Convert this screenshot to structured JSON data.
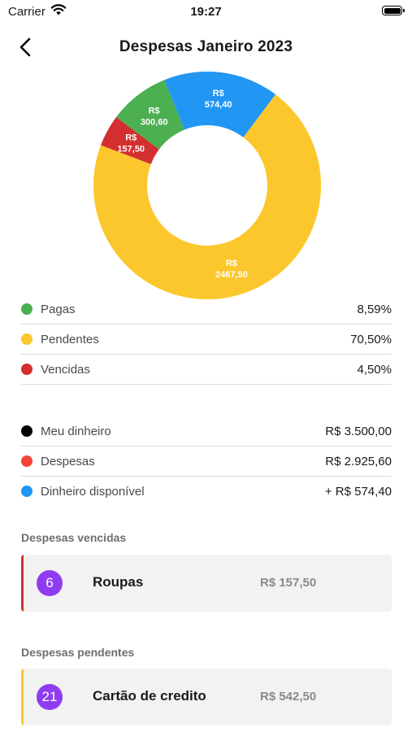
{
  "status_bar": {
    "carrier": "Carrier",
    "time": "19:27"
  },
  "header": {
    "title": "Despesas Janeiro 2023"
  },
  "chart_data": {
    "type": "pie",
    "labels": [
      "R$ 2467,50",
      "R$ 157,50",
      "R$ 300,60",
      "R$ 574,40"
    ],
    "values": [
      2467.5,
      157.5,
      300.6,
      574.4
    ],
    "colors": [
      "#fcc72c",
      "#d32f2f",
      "#4caf50",
      "#2196f3"
    ],
    "donut": true
  },
  "status_legend": [
    {
      "label": "Pagas",
      "value": "8,59%",
      "color": "#4caf50"
    },
    {
      "label": "Pendentes",
      "value": "70,50%",
      "color": "#fcc72c"
    },
    {
      "label": "Vencidas",
      "value": "4,50%",
      "color": "#d32f2f"
    }
  ],
  "money_summary": [
    {
      "label": "Meu dinheiro",
      "value": "R$ 3.500,00",
      "color": "#000000"
    },
    {
      "label": "Despesas",
      "value": "R$ 2.925,60",
      "color": "#f44336"
    },
    {
      "label": "Dinheiro disponível",
      "value": "+ R$ 574,40",
      "color": "#2196f3"
    }
  ],
  "overdue": {
    "title": "Despesas vencidas",
    "item": {
      "count": "6",
      "name": "Roupas",
      "amount": "R$ 157,50",
      "accent": "#d32f2f"
    }
  },
  "pending": {
    "title": "Despesas pendentes",
    "item": {
      "count": "21",
      "name": "Cartão de credito",
      "amount": "R$ 542,50",
      "accent": "#fcc72c"
    }
  }
}
